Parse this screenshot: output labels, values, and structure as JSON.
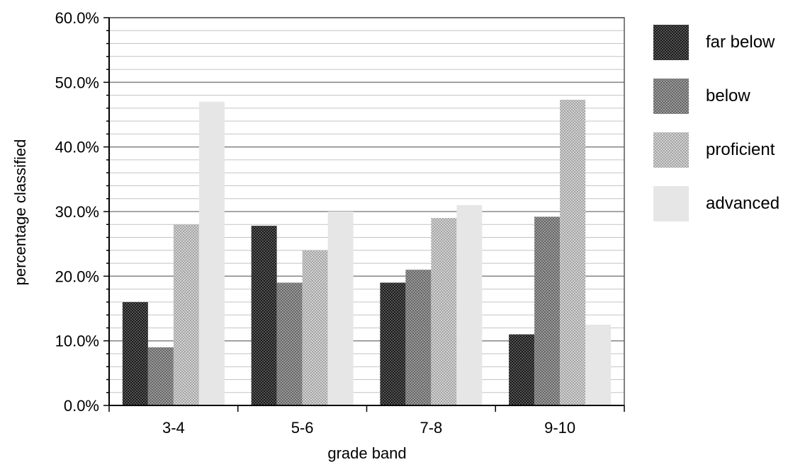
{
  "chart_data": {
    "type": "bar",
    "title": "",
    "xlabel": "grade band",
    "ylabel": "percentage classified",
    "categories": [
      "3-4",
      "5-6",
      "7-8",
      "9-10"
    ],
    "series": [
      {
        "name": "far below",
        "values": [
          16.0,
          27.8,
          19.0,
          11.0
        ],
        "color": "#3a3a3a"
      },
      {
        "name": "below",
        "values": [
          9.0,
          19.0,
          21.0,
          29.2
        ],
        "color": "#7e7e7e"
      },
      {
        "name": "proficient",
        "values": [
          28.0,
          24.0,
          29.0,
          47.3
        ],
        "color": "#b9b9b9"
      },
      {
        "name": "advanced",
        "values": [
          47.0,
          30.0,
          31.0,
          12.5
        ],
        "color": "#e4e4e4"
      }
    ],
    "ylim": [
      0,
      60
    ],
    "yticks": [
      0,
      10,
      20,
      30,
      40,
      50,
      60
    ],
    "ytick_labels": [
      "0.0%",
      "10.0%",
      "20.0%",
      "30.0%",
      "40.0%",
      "50.0%",
      "60.0%"
    ],
    "grid": true,
    "minor_grid_step": 2,
    "legend_position": "right"
  }
}
